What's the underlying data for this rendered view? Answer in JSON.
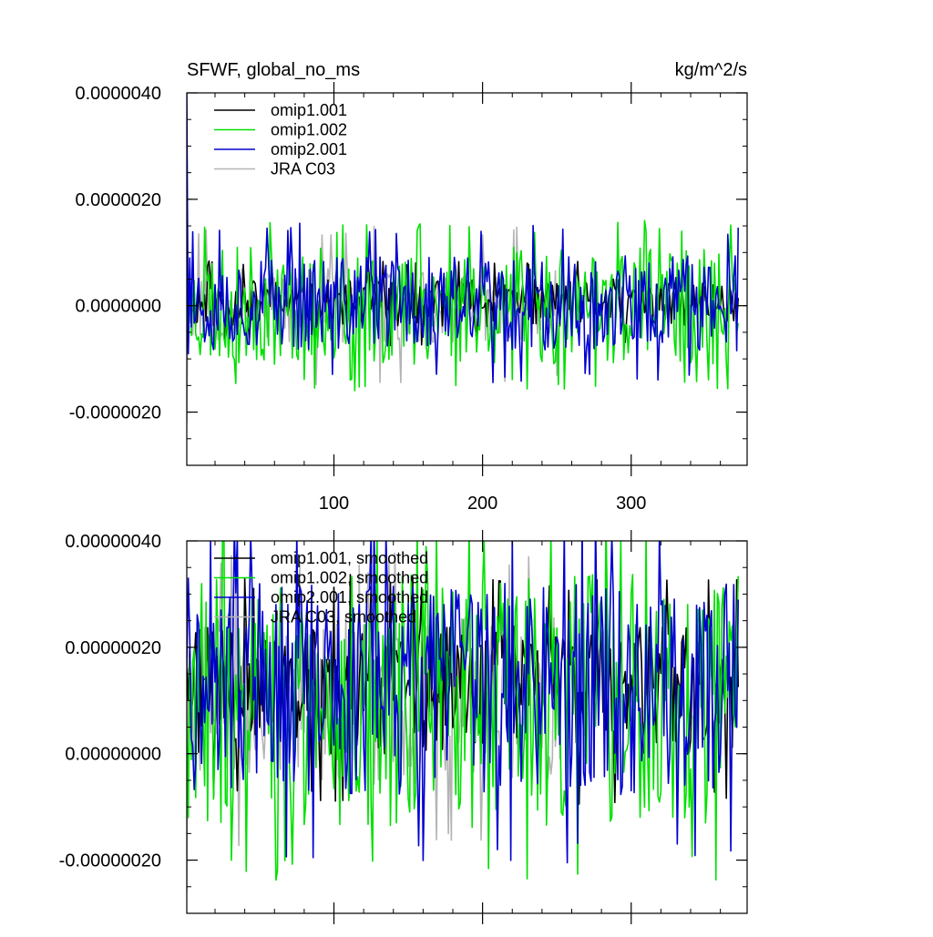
{
  "colors": {
    "omip1_001": "#000000",
    "omip1_002": "#00e000",
    "omip2_001": "#0000d0",
    "jra_c03": "#b4b4b4"
  },
  "chart_data": [
    {
      "type": "line",
      "title": "SFWF, global_no_ms",
      "units": "kg/m^2/s",
      "xlim": [
        1,
        378
      ],
      "ylim": [
        -3e-06,
        4e-06
      ],
      "x_ticks": [
        100,
        200,
        300
      ],
      "x_tick_labels": [
        "100",
        "200",
        "300"
      ],
      "y_ticks": [
        -2e-06,
        0.0,
        2e-06,
        4e-06
      ],
      "y_tick_labels": [
        "-0.0000020",
        "0.0000000",
        "0.0000020",
        "0.0000040"
      ],
      "legend_position": "top-left",
      "series": [
        {
          "name": "omip1.001",
          "key": "omip1_001",
          "n": 372,
          "seed": 11,
          "amp": 4.5e-07,
          "offset": 5e-08,
          "start": [
            5e-07,
            -9e-07,
            7e-07
          ],
          "spike": 8e-07
        },
        {
          "name": "omip1.002",
          "key": "omip1_002",
          "n": 372,
          "seed": 23,
          "amp": 1.1e-06,
          "offset": 0.0,
          "start": [
            3e-07,
            -4e-07,
            6e-07
          ],
          "spike": 1.6e-06
        },
        {
          "name": "omip2.001",
          "key": "omip2_001",
          "n": 372,
          "seed": 37,
          "amp": 9e-07,
          "offset": 5e-08,
          "start": [
            4e-06,
            -9e-07,
            9e-07
          ],
          "spike": 1.5e-06
        },
        {
          "name": "JRA C03",
          "key": "jra_c03",
          "n": 252,
          "seed": 53,
          "amp": 7e-07,
          "offset": 0.0,
          "start": [
            -2.2e-06,
            5e-07,
            -3e-07
          ],
          "spike": 1.5e-06
        }
      ]
    },
    {
      "type": "line",
      "title": "",
      "units": "",
      "xlim": [
        1,
        378
      ],
      "ylim": [
        -3e-07,
        4e-07
      ],
      "x_ticks": [
        100,
        200,
        300
      ],
      "x_tick_labels": [
        "",
        "",
        ""
      ],
      "y_ticks": [
        -2e-07,
        0.0,
        2e-07,
        4e-07
      ],
      "y_tick_labels": [
        "-0.00000020",
        "0.00000000",
        "0.00000020",
        "0.00000040"
      ],
      "legend_position": "top-left",
      "series": [
        {
          "name": "omip1.001, smoothed",
          "key": "omip1_001",
          "n": 372,
          "seed": 71,
          "amp": 1.2e-07,
          "offset": 1.2e-07,
          "start": [
            1.6e-07,
            1e-07,
            2e-07
          ],
          "spike": 2.2e-07
        },
        {
          "name": "omip1.002, smoothed",
          "key": "omip1_002",
          "n": 372,
          "seed": 83,
          "amp": 2.4e-07,
          "offset": 1e-07,
          "start": [
            6e-08,
            -1.2e-07,
            1.8e-07
          ],
          "spike": 3.4e-07
        },
        {
          "name": "omip2.001, smoothed",
          "key": "omip2_001",
          "n": 372,
          "seed": 97,
          "amp": 2e-07,
          "offset": 1.2e-07,
          "start": [
            1.6e-07,
            3.3e-07,
            2.2e-07
          ],
          "spike": 3.3e-07
        },
        {
          "name": "JRA C03, smoothed",
          "key": "jra_c03",
          "n": 252,
          "seed": 109,
          "amp": 1.6e-07,
          "offset": 1e-07,
          "start": [
            -2.6e-07,
            1.6e-07,
            1.2e-07
          ],
          "spike": 2.8e-07
        }
      ]
    }
  ]
}
